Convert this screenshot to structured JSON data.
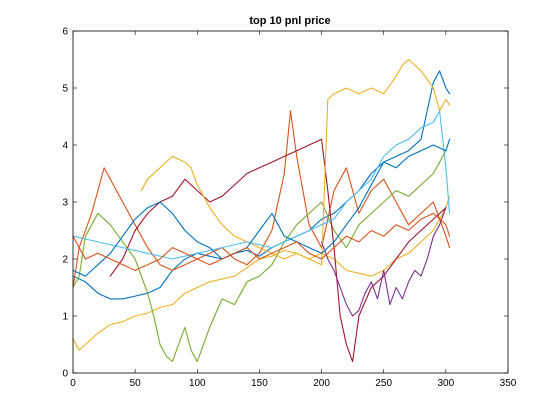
{
  "chart_data": {
    "type": "line",
    "title": "top 10 pnl price",
    "xlabel": "",
    "ylabel": "",
    "xlim": [
      0,
      350
    ],
    "ylim": [
      0,
      6
    ],
    "xticks": [
      0,
      50,
      100,
      150,
      200,
      250,
      300,
      350
    ],
    "yticks": [
      0,
      1,
      2,
      3,
      4,
      5,
      6
    ],
    "grid": false,
    "series": [
      {
        "color": "#EDB120",
        "x": [
          0,
          5,
          10,
          20,
          30,
          40,
          50,
          60,
          70,
          80,
          90,
          100,
          110,
          120,
          130,
          140,
          150,
          160,
          170,
          180,
          190,
          200,
          205,
          210,
          220,
          230,
          240,
          250,
          260,
          270,
          280,
          290,
          300,
          303
        ],
        "y": [
          0.6,
          0.4,
          0.5,
          0.7,
          0.85,
          0.9,
          1.0,
          1.05,
          1.15,
          1.2,
          1.4,
          1.5,
          1.6,
          1.65,
          1.7,
          1.85,
          2.0,
          2.05,
          2.15,
          2.1,
          2.0,
          2.1,
          2.05,
          2.0,
          1.8,
          1.75,
          1.7,
          1.8,
          2.0,
          2.1,
          2.3,
          2.5,
          2.9,
          3.1
        ]
      },
      {
        "color": "#0072BD",
        "x": [
          0,
          10,
          20,
          30,
          40,
          50,
          60,
          70,
          80,
          90,
          100,
          110,
          120,
          130,
          140,
          150,
          160,
          170,
          180,
          190,
          200,
          210,
          220,
          230,
          240,
          250,
          260,
          270,
          280,
          285,
          290,
          295,
          300,
          303
        ],
        "y": [
          1.7,
          1.6,
          1.4,
          1.3,
          1.3,
          1.35,
          1.4,
          1.5,
          1.8,
          2.0,
          2.1,
          2.05,
          2.0,
          2.1,
          2.15,
          2.05,
          2.2,
          2.3,
          2.4,
          2.5,
          2.7,
          2.8,
          3.0,
          3.2,
          3.5,
          3.7,
          3.8,
          3.9,
          4.1,
          4.6,
          5.1,
          5.3,
          5.0,
          4.9
        ]
      },
      {
        "color": "#D95319",
        "x": [
          0,
          5,
          10,
          15,
          20,
          25,
          30,
          40,
          50,
          60,
          70,
          80,
          90,
          100,
          110,
          120,
          130,
          140,
          150,
          160,
          170,
          175,
          180,
          190,
          200,
          210,
          220,
          230,
          240,
          250,
          260,
          270,
          280,
          290,
          295,
          300,
          303
        ],
        "y": [
          1.5,
          2.2,
          2.5,
          2.8,
          3.2,
          3.6,
          3.4,
          3.0,
          2.6,
          2.2,
          1.9,
          1.8,
          1.9,
          2.0,
          2.1,
          2.2,
          2.0,
          1.9,
          2.1,
          2.5,
          3.5,
          4.6,
          3.8,
          2.6,
          2.2,
          3.2,
          3.6,
          2.8,
          3.2,
          3.4,
          3.0,
          2.6,
          2.8,
          3.0,
          2.7,
          2.4,
          2.2
        ]
      },
      {
        "color": "#77AC30",
        "x": [
          0,
          5,
          10,
          20,
          30,
          40,
          50,
          60,
          65,
          70,
          75,
          80,
          85,
          90,
          95,
          100,
          110,
          120,
          130,
          140,
          150,
          160,
          170,
          180,
          190,
          200,
          210,
          220,
          230,
          240,
          250,
          260,
          270,
          280,
          290,
          300
        ],
        "y": [
          1.5,
          1.7,
          2.4,
          2.8,
          2.6,
          2.3,
          2.0,
          1.4,
          1.0,
          0.5,
          0.3,
          0.2,
          0.5,
          0.8,
          0.4,
          0.2,
          0.8,
          1.3,
          1.2,
          1.6,
          1.7,
          1.9,
          2.3,
          2.6,
          2.8,
          3.0,
          2.5,
          2.2,
          2.6,
          2.8,
          3.0,
          3.2,
          3.1,
          3.3,
          3.5,
          3.9
        ]
      },
      {
        "color": "#A2142F",
        "x": [
          30,
          40,
          50,
          60,
          70,
          80,
          90,
          100,
          110,
          120,
          130,
          140,
          150,
          160,
          170,
          180,
          190,
          200,
          205,
          210,
          215,
          220,
          225,
          230,
          240,
          250,
          260,
          270,
          280,
          290,
          300
        ],
        "y": [
          1.7,
          2.0,
          2.5,
          2.8,
          3.0,
          3.1,
          3.4,
          3.2,
          3.0,
          3.1,
          3.3,
          3.5,
          3.6,
          3.7,
          3.8,
          3.9,
          4.0,
          4.1,
          3.2,
          2.2,
          1.0,
          0.5,
          0.2,
          1.0,
          1.5,
          1.7,
          2.0,
          2.3,
          2.5,
          2.7,
          2.9
        ]
      },
      {
        "color": "#EDB120",
        "x": [
          55,
          60,
          70,
          80,
          90,
          95,
          100,
          110,
          120,
          130,
          140,
          150,
          160,
          170,
          180,
          190,
          200,
          205,
          210,
          220,
          230,
          240,
          250,
          260,
          265,
          270,
          280,
          290,
          295,
          300,
          303
        ],
        "y": [
          3.2,
          3.4,
          3.6,
          3.8,
          3.7,
          3.6,
          3.3,
          2.9,
          2.6,
          2.4,
          2.3,
          2.2,
          2.1,
          2.0,
          2.1,
          2.0,
          1.9,
          4.8,
          4.9,
          5.0,
          4.9,
          5.0,
          4.9,
          5.2,
          5.4,
          5.5,
          5.3,
          5.0,
          4.6,
          4.8,
          4.7
        ]
      },
      {
        "color": "#4DBEEE",
        "x": [
          0,
          20,
          40,
          60,
          80,
          100,
          120,
          140,
          160,
          180,
          200,
          210,
          220,
          230,
          240,
          250,
          260,
          270,
          280,
          290,
          295,
          300,
          303
        ],
        "y": [
          2.4,
          2.3,
          2.2,
          2.1,
          2.0,
          2.1,
          2.2,
          2.3,
          2.2,
          2.4,
          2.6,
          2.7,
          3.0,
          3.2,
          3.4,
          3.8,
          4.0,
          4.1,
          4.3,
          4.4,
          4.6,
          3.6,
          2.8
        ]
      },
      {
        "color": "#7E2F8E",
        "x": [
          200,
          205,
          210,
          215,
          220,
          225,
          230,
          235,
          240,
          245,
          250,
          255,
          260,
          265,
          270,
          275,
          280,
          285,
          290,
          295,
          300
        ],
        "y": [
          2.3,
          2.0,
          1.8,
          1.5,
          1.2,
          1.0,
          1.1,
          1.4,
          1.6,
          1.3,
          1.8,
          1.2,
          1.5,
          1.3,
          1.6,
          1.8,
          1.7,
          2.0,
          2.4,
          2.6,
          2.9
        ]
      },
      {
        "color": "#0072BD",
        "x": [
          0,
          10,
          20,
          30,
          40,
          50,
          60,
          70,
          80,
          90,
          100,
          110,
          120,
          130,
          140,
          150,
          160,
          170,
          180,
          190,
          200,
          210,
          220,
          230,
          240,
          250,
          260,
          270,
          280,
          290,
          300,
          303
        ],
        "y": [
          1.8,
          1.7,
          1.9,
          2.1,
          2.4,
          2.7,
          2.9,
          3.0,
          2.8,
          2.5,
          2.3,
          2.2,
          2.0,
          2.1,
          2.2,
          2.5,
          2.8,
          2.4,
          2.3,
          2.2,
          2.1,
          2.3,
          2.6,
          2.9,
          3.3,
          3.7,
          3.6,
          3.8,
          3.9,
          4.0,
          3.9,
          4.1
        ]
      },
      {
        "color": "#D95319",
        "x": [
          0,
          5,
          10,
          20,
          30,
          40,
          50,
          60,
          70,
          80,
          90,
          100,
          110,
          120,
          130,
          140,
          150,
          160,
          170,
          180,
          190,
          200,
          210,
          220,
          230,
          240,
          250,
          260,
          270,
          280,
          290,
          300,
          303
        ],
        "y": [
          2.4,
          2.2,
          2.0,
          2.1,
          2.0,
          1.9,
          1.8,
          1.9,
          2.0,
          2.2,
          2.1,
          2.0,
          1.9,
          2.0,
          2.1,
          2.2,
          2.0,
          2.1,
          2.2,
          2.3,
          2.1,
          2.0,
          2.2,
          2.4,
          2.3,
          2.5,
          2.4,
          2.6,
          2.5,
          2.7,
          2.8,
          2.6,
          2.4
        ]
      }
    ]
  }
}
